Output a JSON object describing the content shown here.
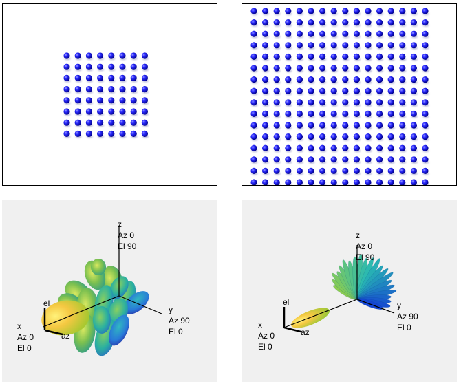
{
  "figures": [
    {
      "panel": "small-array",
      "type": "element-grid",
      "rows": 8,
      "cols": 8,
      "element_color": "#1a1aff"
    },
    {
      "panel": "large-array",
      "type": "element-grid",
      "rows": 16,
      "cols": 16,
      "element_color": "#1a1aff"
    },
    {
      "panel": "pattern-small",
      "type": "3d-pattern",
      "axes": {
        "z": {
          "name": "z",
          "az": "Az 0",
          "el": "El 90"
        },
        "y": {
          "name": "y",
          "az": "Az 90",
          "el": "El 0"
        },
        "x": {
          "name": "x",
          "az": "Az 0",
          "el": "El 0"
        },
        "local_el": "el",
        "local_az": "az"
      }
    },
    {
      "panel": "pattern-large",
      "type": "3d-pattern",
      "axes": {
        "z": {
          "name": "z",
          "az": "Az 0",
          "el": "El 90"
        },
        "y": {
          "name": "y",
          "az": "Az 90",
          "el": "El 0"
        },
        "x": {
          "name": "x",
          "az": "Az 0",
          "el": "El 0"
        },
        "local_el": "el",
        "local_az": "az"
      }
    }
  ]
}
